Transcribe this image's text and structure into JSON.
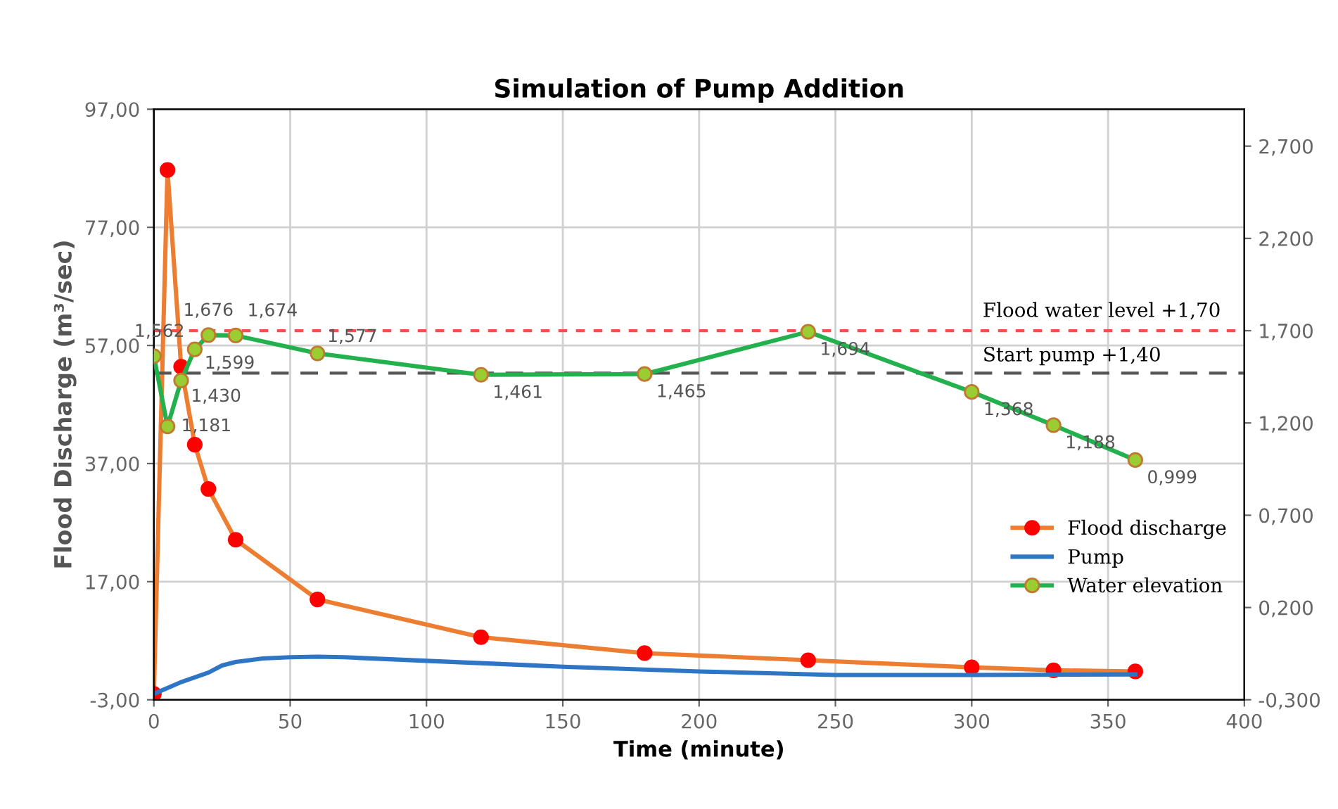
{
  "chart_data": {
    "type": "line",
    "title": "Simulation of Pump Addition",
    "xlabel": "Time (minute)",
    "ylabel": "Flood Discharge (m³/sec)",
    "xlim": [
      0,
      400
    ],
    "xticks": [
      0,
      50,
      100,
      150,
      200,
      250,
      300,
      350,
      400
    ],
    "ylim": [
      -3,
      97
    ],
    "yticks": [
      {
        "value": -3,
        "label": "-3,00"
      },
      {
        "value": 17,
        "label": "17,00"
      },
      {
        "value": 37,
        "label": "37,00"
      },
      {
        "value": 57,
        "label": "57,00"
      },
      {
        "value": 77,
        "label": "77,00"
      },
      {
        "value": 97,
        "label": "97,00"
      }
    ],
    "y2lim": [
      -0.3,
      2.9
    ],
    "y2ticks": [
      {
        "value": -0.3,
        "label": "-0,300"
      },
      {
        "value": 0.2,
        "label": "0,200"
      },
      {
        "value": 0.7,
        "label": "0,700"
      },
      {
        "value": 1.2,
        "label": "1,200"
      },
      {
        "value": 1.7,
        "label": "1,700"
      },
      {
        "value": 2.2,
        "label": "2,200"
      },
      {
        "value": 2.7,
        "label": "2,700"
      }
    ],
    "grid": true,
    "legend": "right",
    "series": [
      {
        "name": "Flood discharge",
        "color": "#ed7d31",
        "marker": "circle",
        "x": [
          0,
          5,
          10,
          15,
          20,
          30,
          60,
          120,
          180,
          240,
          300,
          330,
          360
        ],
        "values": [
          -2,
          86.7,
          53.4,
          40.2,
          32.7,
          24.1,
          14.0,
          7.6,
          4.9,
          3.7,
          2.5,
          2.0,
          1.8
        ]
      },
      {
        "name": "Pump",
        "color": "#2e75c6",
        "marker": "none",
        "x": [
          0,
          10,
          20,
          25,
          30,
          40,
          50,
          60,
          70,
          100,
          150,
          200,
          250,
          300,
          360
        ],
        "values": [
          -2,
          0,
          1.6,
          2.8,
          3.4,
          4.0,
          4.2,
          4.3,
          4.2,
          3.6,
          2.6,
          1.8,
          1.2,
          1.2,
          1.3
        ]
      },
      {
        "name": "Water elevation",
        "color": "#22b14c",
        "marker": "circle",
        "axis": "y2",
        "x": [
          0,
          5,
          10,
          15,
          20,
          30,
          60,
          120,
          180,
          240,
          300,
          330,
          360
        ],
        "values": [
          1.562,
          1.181,
          1.43,
          1.599,
          1.676,
          1.674,
          1.577,
          1.461,
          1.465,
          1.694,
          1.368,
          1.188,
          0.999
        ],
        "value_labels": [
          "1,562",
          "1,181",
          "1,430",
          "1,599",
          "1,676",
          "1,674",
          "1,577",
          "1,461",
          "1,465",
          "1,694",
          "1,368",
          "1,188",
          "0,999"
        ]
      }
    ],
    "ref_lines": [
      {
        "axis": "y2",
        "value": 1.7,
        "label": "Flood water level +1,70",
        "color": "#ff4d4d",
        "line_style": "dotted"
      },
      {
        "axis": "y2",
        "value": 1.47,
        "label": "Start pump +1,40",
        "color": "#555555",
        "line_style": "dashed"
      }
    ]
  }
}
